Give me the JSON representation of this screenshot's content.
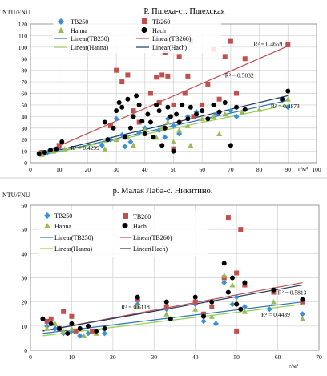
{
  "chart_data": [
    {
      "type": "scatter",
      "title": "Р. Пшеха-ст. Пшехская",
      "ylabel": "NTU/FNU",
      "xlabel": "г/м³",
      "xlim": [
        0,
        100
      ],
      "ylim": [
        0,
        120
      ],
      "xticks": [
        0,
        10,
        20,
        30,
        40,
        50,
        60,
        70,
        80,
        90,
        100
      ],
      "yticks": [
        0,
        10,
        20,
        30,
        40,
        50,
        60,
        70,
        80,
        90,
        100,
        110,
        120
      ],
      "grid": true,
      "legend_position": "top-left",
      "legend": {
        "tb250": "TB250",
        "tb260": "TB260",
        "hanna": "Hanna",
        "hach": "Hach",
        "lin_tb250": "Linear(TB250)",
        "lin_tb260": "Linear(TB260)",
        "lin_hanna": "Linear(Hanna)",
        "lin_hach": "Linear(Hach)"
      },
      "series": [
        {
          "name": "TB250",
          "marker": "diamond",
          "color": "#3a8fd9",
          "points": [
            [
              4,
              8
            ],
            [
              6,
              9
            ],
            [
              8,
              11
            ],
            [
              10,
              13
            ],
            [
              25,
              15
            ],
            [
              28,
              20
            ],
            [
              30,
              38
            ],
            [
              32,
              24
            ],
            [
              35,
              18
            ],
            [
              38,
              26
            ],
            [
              40,
              30
            ],
            [
              42,
              35
            ],
            [
              45,
              28
            ],
            [
              48,
              38
            ],
            [
              50,
              32
            ],
            [
              52,
              25
            ],
            [
              55,
              40
            ],
            [
              58,
              44
            ],
            [
              62,
              38
            ],
            [
              65,
              42
            ],
            [
              70,
              45
            ],
            [
              72,
              40
            ],
            [
              88,
              54
            ],
            [
              90,
              48
            ],
            [
              47,
              22
            ],
            [
              33,
              14
            ]
          ]
        },
        {
          "name": "TB260",
          "marker": "square",
          "color": "#c0504d",
          "points": [
            [
              4,
              9
            ],
            [
              10,
              15
            ],
            [
              28,
              32
            ],
            [
              30,
              80
            ],
            [
              32,
              70
            ],
            [
              34,
              76
            ],
            [
              36,
              45
            ],
            [
              38,
              35
            ],
            [
              42,
              60
            ],
            [
              44,
              74
            ],
            [
              45,
              52
            ],
            [
              46,
              76
            ],
            [
              47,
              95
            ],
            [
              48,
              75
            ],
            [
              50,
              50
            ],
            [
              52,
              92
            ],
            [
              54,
              60
            ],
            [
              55,
              75
            ],
            [
              56,
              105
            ],
            [
              57,
              40
            ],
            [
              60,
              50
            ],
            [
              62,
              68
            ],
            [
              64,
              98
            ],
            [
              66,
              55
            ],
            [
              68,
              92
            ],
            [
              70,
              105
            ],
            [
              72,
              60
            ],
            [
              75,
              90
            ],
            [
              90,
              102
            ],
            [
              50,
              12
            ]
          ]
        },
        {
          "name": "Hanna",
          "marker": "triangle",
          "color": "#9bbb59",
          "points": [
            [
              4,
              7
            ],
            [
              8,
              10
            ],
            [
              12,
              12
            ],
            [
              26,
              12
            ],
            [
              30,
              20
            ],
            [
              34,
              22
            ],
            [
              36,
              15
            ],
            [
              40,
              28
            ],
            [
              44,
              22
            ],
            [
              46,
              30
            ],
            [
              48,
              35
            ],
            [
              52,
              28
            ],
            [
              55,
              32
            ],
            [
              60,
              38
            ],
            [
              64,
              40
            ],
            [
              68,
              42
            ],
            [
              74,
              44
            ],
            [
              80,
              46
            ],
            [
              90,
              55
            ],
            [
              50,
              18
            ],
            [
              56,
              15
            ],
            [
              66,
              25
            ]
          ]
        },
        {
          "name": "Hach",
          "marker": "circle",
          "color": "#000000",
          "points": [
            [
              3,
              8
            ],
            [
              5,
              9
            ],
            [
              7,
              11
            ],
            [
              9,
              12
            ],
            [
              11,
              18
            ],
            [
              26,
              35
            ],
            [
              27,
              20
            ],
            [
              29,
              30
            ],
            [
              30,
              45
            ],
            [
              31,
              52
            ],
            [
              32,
              48
            ],
            [
              33,
              22
            ],
            [
              34,
              55
            ],
            [
              35,
              30
            ],
            [
              36,
              40
            ],
            [
              37,
              58
            ],
            [
              38,
              50
            ],
            [
              39,
              36
            ],
            [
              40,
              25
            ],
            [
              41,
              42
            ],
            [
              42,
              35
            ],
            [
              43,
              22
            ],
            [
              44,
              50
            ],
            [
              45,
              45
            ],
            [
              46,
              15
            ],
            [
              47,
              30
            ],
            [
              48,
              48
            ],
            [
              49,
              40
            ],
            [
              50,
              10
            ],
            [
              51,
              42
            ],
            [
              52,
              35
            ],
            [
              53,
              50
            ],
            [
              55,
              38
            ],
            [
              56,
              48
            ],
            [
              58,
              42
            ],
            [
              60,
              45
            ],
            [
              62,
              38
            ],
            [
              64,
              50
            ],
            [
              66,
              44
            ],
            [
              68,
              52
            ],
            [
              70,
              15
            ],
            [
              72,
              48
            ],
            [
              75,
              46
            ],
            [
              88,
              55
            ],
            [
              90,
              62
            ]
          ]
        }
      ],
      "trendlines": [
        {
          "name": "Linear(TB250)",
          "color": "#2f75b5",
          "from": [
            3,
            6
          ],
          "to": [
            90,
            54
          ]
        },
        {
          "name": "Linear(TB260)",
          "color": "#c0504d",
          "from": [
            3,
            7
          ],
          "to": [
            90,
            101
          ]
        },
        {
          "name": "Linear(Hanna)",
          "color": "#92d050",
          "from": [
            3,
            6
          ],
          "to": [
            90,
            50
          ]
        },
        {
          "name": "Linear(Hach)",
          "color": "#1f3864",
          "from": [
            3,
            7
          ],
          "to": [
            90,
            58
          ]
        }
      ],
      "annotations": [
        {
          "text": "R² = 0.4659",
          "x": 78,
          "y": 101
        },
        {
          "text": "R² = 0.5032",
          "x": 68,
          "y": 74
        },
        {
          "text": "R² = 0.4873",
          "x": 84,
          "y": 47
        },
        {
          "text": "R² = 0.4299",
          "x": 14,
          "y": 11
        }
      ]
    },
    {
      "type": "scatter",
      "title": "р. Малая Лаба-с. Никитино.",
      "ylabel": "NTU/FNU",
      "xlabel": "г/м³",
      "xlim": [
        0,
        70
      ],
      "ylim": [
        0,
        60
      ],
      "xticks": [
        0,
        10,
        20,
        30,
        40,
        50,
        60,
        70
      ],
      "yticks": [
        0,
        10,
        20,
        30,
        40,
        50,
        60
      ],
      "grid": true,
      "legend_position": "top-left",
      "legend": {
        "tb250": "TB250",
        "tb260": "TB260",
        "hanna": "Hanna",
        "hach": "Hach",
        "lin_tb250": "Linear(TB250)",
        "lin_tb260": "Linear(TB260)",
        "lin_hanna": "Linear(Hanna)",
        "lin_hach": "Linear(Hach)"
      },
      "series": [
        {
          "name": "TB250",
          "marker": "diamond",
          "color": "#3a8fd9",
          "points": [
            [
              4,
              10
            ],
            [
              6,
              9
            ],
            [
              8,
              7
            ],
            [
              10,
              8
            ],
            [
              12,
              6
            ],
            [
              14,
              7
            ],
            [
              18,
              7
            ],
            [
              26,
              19
            ],
            [
              33,
              17
            ],
            [
              40,
              19
            ],
            [
              42,
              12
            ],
            [
              45,
              11
            ],
            [
              47,
              28
            ],
            [
              49,
              19
            ],
            [
              50,
              22
            ],
            [
              52,
              18
            ],
            [
              58,
              17
            ],
            [
              66,
              15
            ]
          ]
        },
        {
          "name": "TB260",
          "marker": "square",
          "color": "#c0504d",
          "points": [
            [
              4,
              12
            ],
            [
              5,
              13
            ],
            [
              7,
              9
            ],
            [
              8,
              16
            ],
            [
              10,
              14
            ],
            [
              11,
              8
            ],
            [
              15,
              8
            ],
            [
              26,
              21
            ],
            [
              33,
              18
            ],
            [
              40,
              20
            ],
            [
              42,
              15
            ],
            [
              44,
              18
            ],
            [
              47,
              30
            ],
            [
              48,
              55
            ],
            [
              50,
              32
            ],
            [
              51,
              50
            ],
            [
              52,
              27
            ],
            [
              59,
              24
            ],
            [
              66,
              20
            ],
            [
              50,
              8
            ]
          ]
        },
        {
          "name": "Hanna",
          "marker": "triangle",
          "color": "#9bbb59",
          "points": [
            [
              4,
              9
            ],
            [
              6,
              11
            ],
            [
              8,
              8
            ],
            [
              10,
              9
            ],
            [
              13,
              6
            ],
            [
              16,
              7
            ],
            [
              26,
              18
            ],
            [
              33,
              15
            ],
            [
              40,
              17
            ],
            [
              44,
              14
            ],
            [
              47,
              31
            ],
            [
              49,
              27
            ],
            [
              50,
              20
            ],
            [
              52,
              16
            ],
            [
              59,
              20
            ],
            [
              66,
              13
            ]
          ]
        },
        {
          "name": "Hach",
          "marker": "circle",
          "color": "#000000",
          "points": [
            [
              3,
              13
            ],
            [
              5,
              11
            ],
            [
              7,
              9
            ],
            [
              9,
              7
            ],
            [
              10,
              11
            ],
            [
              12,
              9
            ],
            [
              14,
              10
            ],
            [
              16,
              8
            ],
            [
              18,
              9
            ],
            [
              26,
              22
            ],
            [
              33,
              20
            ],
            [
              34,
              13
            ],
            [
              40,
              22
            ],
            [
              42,
              14
            ],
            [
              44,
              20
            ],
            [
              47,
              36
            ],
            [
              48,
              24
            ],
            [
              49,
              30
            ],
            [
              50,
              19
            ],
            [
              51,
              17
            ],
            [
              52,
              28
            ],
            [
              59,
              25
            ],
            [
              66,
              21
            ]
          ]
        }
      ],
      "trendlines": [
        {
          "name": "Linear(TB250)",
          "color": "#2f75b5",
          "from": [
            3,
            7
          ],
          "to": [
            66,
            20
          ]
        },
        {
          "name": "Linear(TB260)",
          "color": "#c0504d",
          "from": [
            3,
            8
          ],
          "to": [
            66,
            28
          ]
        },
        {
          "name": "Linear(Hanna)",
          "color": "#92d050",
          "from": [
            3,
            6
          ],
          "to": [
            66,
            19
          ]
        },
        {
          "name": "Linear(Hach)",
          "color": "#1f3864",
          "from": [
            3,
            8
          ],
          "to": [
            66,
            27
          ]
        }
      ],
      "annotations": [
        {
          "text": "R² = 0.6118",
          "x": 22,
          "y": 17
        },
        {
          "text": "R² = 0.5813",
          "x": 60,
          "y": 23
        },
        {
          "text": "R² = 0.4439",
          "x": 56,
          "y": 14
        }
      ]
    }
  ]
}
